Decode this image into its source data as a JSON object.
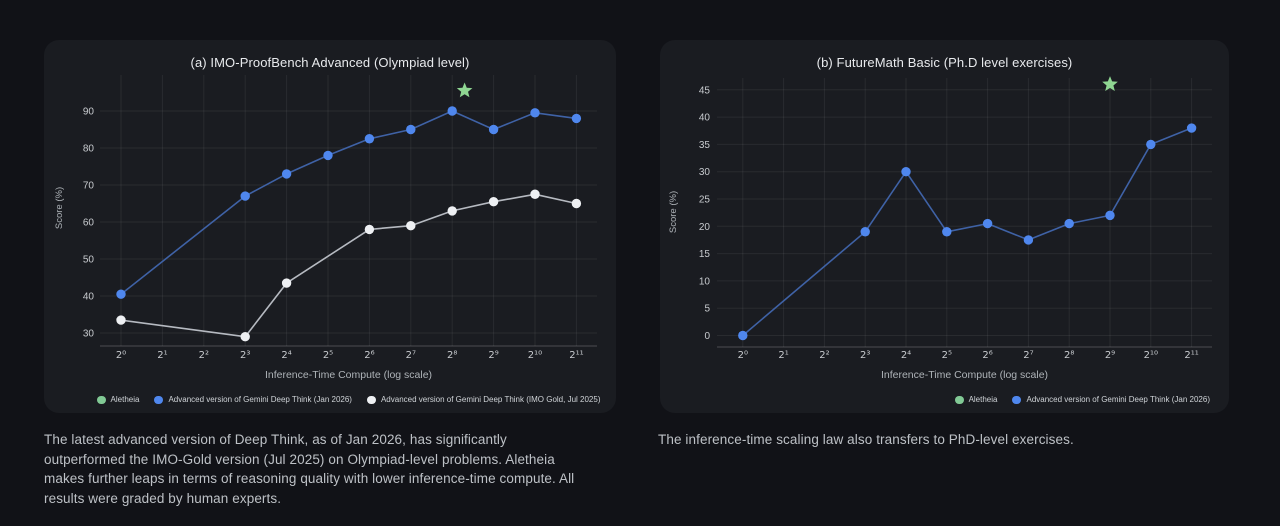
{
  "page": {
    "background": "#111217",
    "panel_background": "#1a1c21"
  },
  "colors": {
    "aletheia_green": "#81c995",
    "star_green": "#8fd692",
    "deepthink_blue_marker": "#4f87ee",
    "deepthink_blue_line": "#3f62a6",
    "imogold_white_marker": "#eef0f3",
    "imogold_white_line": "#b6bac1",
    "grid": "rgba(255,255,255,0.065)",
    "axis": "rgba(255,255,255,0.22)",
    "tick_label": "#c8cbcf",
    "axis_title": "#aeb3b8"
  },
  "chart_data": [
    {
      "type": "line",
      "title": "(a) IMO-ProofBench Advanced (Olympiad level)",
      "xlabel": "Inference-Time Compute (log scale)",
      "ylabel": "Score (%)",
      "x_tick_labels": [
        "2⁰",
        "2¹",
        "2²",
        "2³",
        "2⁴",
        "2⁵",
        "2⁶",
        "2⁷",
        "2⁸",
        "2⁹",
        "2¹⁰",
        "2¹¹"
      ],
      "y_ticks": [
        30,
        40,
        50,
        60,
        70,
        80,
        90
      ],
      "ylim": [
        26,
        100
      ],
      "grid": true,
      "legend_position": "bottom-center",
      "series": [
        {
          "name": "Advanced version of Gemini Deep Think (Jan 2026)",
          "marker_color": "#4f87ee",
          "line_color": "#3f62a6",
          "x_exp": [
            0,
            3,
            4,
            5,
            6,
            7,
            8,
            9,
            10,
            11
          ],
          "values": [
            40.5,
            67,
            73,
            78,
            82.5,
            85,
            90,
            85,
            89.5,
            88
          ]
        },
        {
          "name": "Advanced version of Gemini Deep Think (IMO Gold, Jul 2025)",
          "marker_color": "#eef0f3",
          "line_color": "#b6bac1",
          "x_exp": [
            0,
            3,
            4,
            6,
            7,
            8,
            9,
            10,
            11
          ],
          "values": [
            33.5,
            29,
            43.5,
            58,
            59,
            63,
            65.5,
            67.5,
            65
          ]
        }
      ],
      "star": {
        "name": "Aletheia",
        "color": "#8fd692",
        "x_exp": 8.3,
        "value": 95.5
      },
      "legend": [
        {
          "label": "Aletheia",
          "color": "#81c995"
        },
        {
          "label": "Advanced version of Gemini Deep Think (Jan 2026)",
          "color": "#4f87ee"
        },
        {
          "label": "Advanced version of Gemini Deep Think (IMO Gold, Jul 2025)",
          "color": "#eef0f3"
        }
      ],
      "caption": "The latest advanced version of Deep Think, as of Jan 2026, has significantly\noutperformed the IMO-Gold version (Jul 2025) on Olympiad-level problems. Aletheia\nmakes further leaps in terms of reasoning quality with lower inference-time compute. All\nresults were graded by human experts."
    },
    {
      "type": "line",
      "title": "(b) FutureMath Basic (Ph.D level exercises)",
      "xlabel": "Inference-Time Compute (log scale)",
      "ylabel": "Score (%)",
      "x_tick_labels": [
        "2⁰",
        "2¹",
        "2²",
        "2³",
        "2⁴",
        "2⁵",
        "2⁶",
        "2⁷",
        "2⁸",
        "2⁹",
        "2¹⁰",
        "2¹¹"
      ],
      "y_ticks": [
        0,
        5,
        10,
        15,
        20,
        25,
        30,
        35,
        40,
        45
      ],
      "ylim": [
        -2,
        48
      ],
      "grid": true,
      "legend_position": "bottom-right",
      "series": [
        {
          "name": "Advanced version of Gemini Deep Think (Jan 2026)",
          "marker_color": "#4f87ee",
          "line_color": "#3f62a6",
          "x_exp": [
            0,
            3,
            4,
            5,
            6,
            7,
            8,
            9,
            10,
            11
          ],
          "values": [
            0,
            19,
            30,
            19,
            20.5,
            17.5,
            20.5,
            22,
            35,
            38
          ]
        }
      ],
      "star": {
        "name": "Aletheia",
        "color": "#8fd692",
        "x_exp": 9,
        "value": 46
      },
      "legend": [
        {
          "label": "Aletheia",
          "color": "#81c995"
        },
        {
          "label": "Advanced version of Gemini Deep Think (Jan 2026)",
          "color": "#4f87ee"
        }
      ],
      "caption": "The inference-time scaling law also transfers to PhD-level exercises."
    }
  ]
}
